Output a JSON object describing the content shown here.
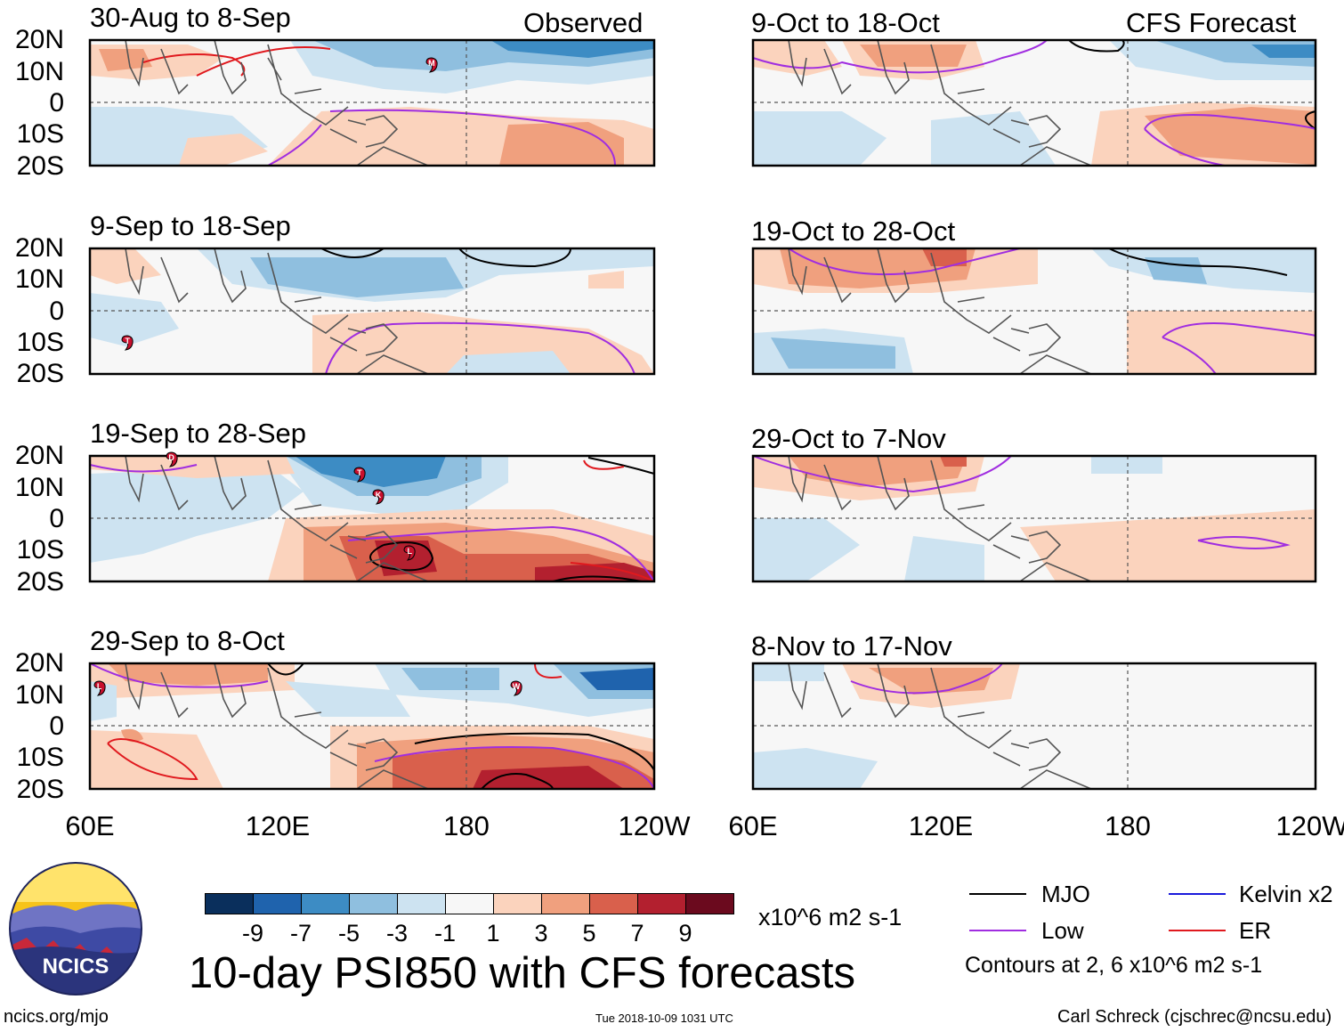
{
  "panels": {
    "observed": {
      "header_right": "Observed",
      "periods": [
        "30-Aug to 8-Sep",
        "9-Sep to 18-Sep",
        "19-Sep to 28-Sep",
        "29-Sep to 8-Oct"
      ]
    },
    "forecast": {
      "header_right": "CFS Forecast",
      "periods": [
        "9-Oct to 18-Oct",
        "19-Oct to 28-Oct",
        "29-Oct to 7-Nov",
        "8-Nov to 17-Nov"
      ]
    }
  },
  "axes": {
    "y_labels": [
      "20N",
      "10N",
      "0",
      "10S",
      "20S"
    ],
    "x_labels": [
      "60E",
      "120E",
      "180",
      "120W"
    ]
  },
  "storm_markers": [
    {
      "panel": 0,
      "letter": "M",
      "lon": 169,
      "lat": 12
    },
    {
      "panel": 1,
      "letter": "T",
      "lon": 72,
      "lat": -10
    },
    {
      "panel": 2,
      "letter": "T",
      "lon": 146,
      "lat": 14
    },
    {
      "panel": 2,
      "letter": "K",
      "lon": 152,
      "lat": 7
    },
    {
      "panel": 2,
      "letter": "L",
      "lon": 162,
      "lat": -11
    },
    {
      "panel": 2,
      "letter": "D",
      "lon": 86,
      "lat": 19
    },
    {
      "panel": 3,
      "letter": "L",
      "lon": 63,
      "lat": 12
    },
    {
      "panel": 3,
      "letter": "W",
      "lon": 196,
      "lat": 12
    }
  ],
  "colorbar": {
    "tick_labels": [
      "-9",
      "-7",
      "-5",
      "-3",
      "-1",
      "1",
      "3",
      "5",
      "7",
      "9"
    ],
    "units": "x10^6 m2 s-1",
    "colors": [
      "#0a2f5c",
      "#1f63ad",
      "#3d8cc4",
      "#8fbfdf",
      "#cde3f1",
      "#f7f7f7",
      "#fbd3bd",
      "#f0a07e",
      "#d9604c",
      "#b3202f",
      "#6b0a1e"
    ]
  },
  "legend": {
    "items": [
      {
        "label": "MJO",
        "color": "#000000"
      },
      {
        "label": "Kelvin x2",
        "color": "#1a1adc"
      },
      {
        "label": "Low",
        "color": "#a02de0"
      },
      {
        "label": "ER",
        "color": "#e0191e"
      }
    ],
    "contours_note": "Contours at 2, 6 x10^6 m2 s-1"
  },
  "main_title": "10-day PSI850 with CFS forecasts",
  "logo_text": "NCICS",
  "footer": {
    "left": "ncics.org/mjo",
    "center": "Tue 2018-10-09 1031 UTC",
    "right": "Carl Schreck (cjschrec@ncsu.edu)"
  }
}
